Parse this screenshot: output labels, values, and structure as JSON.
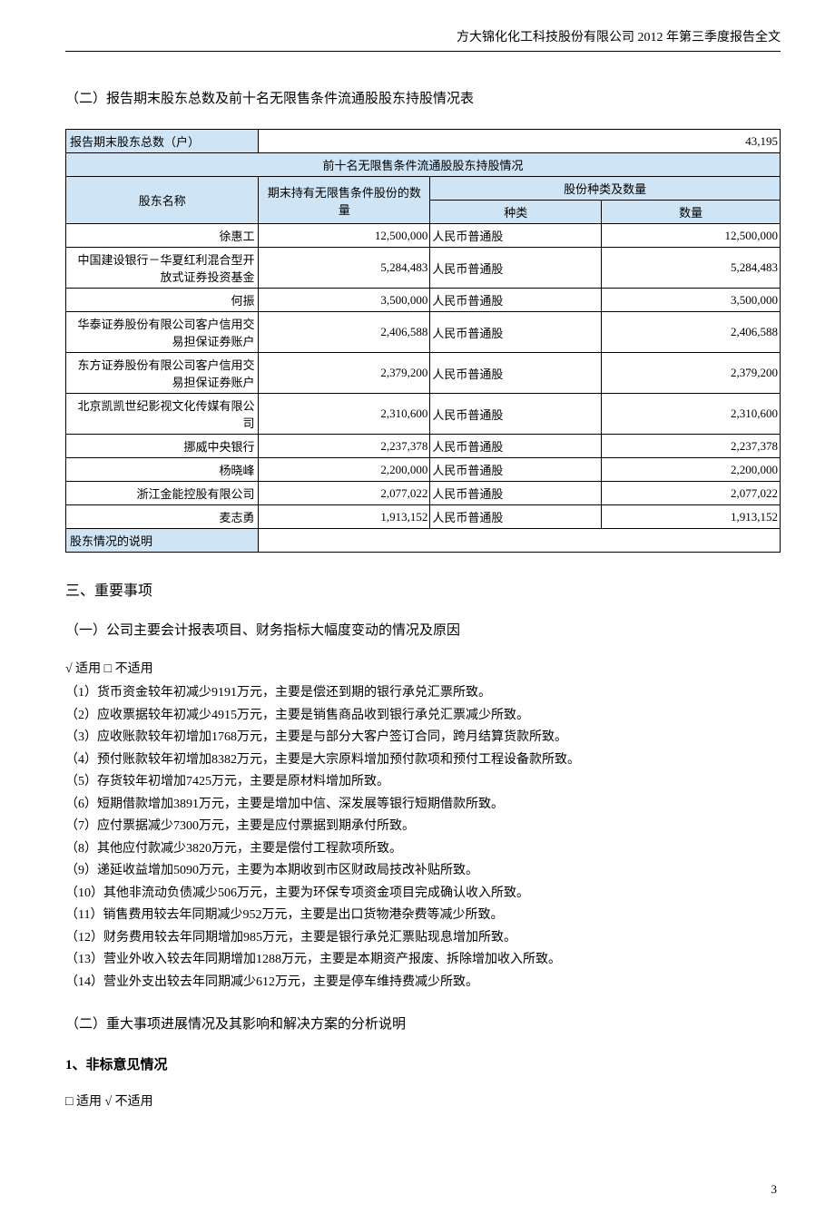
{
  "header": "方大锦化化工科技股份有限公司 2012 年第三季度报告全文",
  "section2_title": "（二）报告期末股东总数及前十名无限售条件流通股股东持股情况表",
  "table": {
    "total_label": "报告期末股东总数（户）",
    "total_value": "43,195",
    "top10_header": "前十名无限售条件流通股股东持股情况",
    "col_name": "股东名称",
    "col_qty": "期末持有无限售条件股份的数量",
    "col_typeqty": "股份种类及数量",
    "col_type": "种类",
    "col_amount": "数量",
    "rows": [
      {
        "name": "徐惠工",
        "qty": "12,500,000",
        "type": "人民币普通股",
        "amount": "12,500,000"
      },
      {
        "name": "中国建设银行－华夏红利混合型开放式证券投资基金",
        "qty": "5,284,483",
        "type": "人民币普通股",
        "amount": "5,284,483"
      },
      {
        "name": "何振",
        "qty": "3,500,000",
        "type": "人民币普通股",
        "amount": "3,500,000"
      },
      {
        "name": "华泰证券股份有限公司客户信用交易担保证券账户",
        "qty": "2,406,588",
        "type": "人民币普通股",
        "amount": "2,406,588"
      },
      {
        "name": "东方证券股份有限公司客户信用交易担保证券账户",
        "qty": "2,379,200",
        "type": "人民币普通股",
        "amount": "2,379,200"
      },
      {
        "name": "北京凯凯世纪影视文化传媒有限公司",
        "qty": "2,310,600",
        "type": "人民币普通股",
        "amount": "2,310,600"
      },
      {
        "name": "挪威中央银行",
        "qty": "2,237,378",
        "type": "人民币普通股",
        "amount": "2,237,378"
      },
      {
        "name": "杨晓峰",
        "qty": "2,200,000",
        "type": "人民币普通股",
        "amount": "2,200,000"
      },
      {
        "name": "浙江金能控股有限公司",
        "qty": "2,077,022",
        "type": "人民币普通股",
        "amount": "2,077,022"
      },
      {
        "name": "麦志勇",
        "qty": "1,913,152",
        "type": "人民币普通股",
        "amount": "1,913,152"
      }
    ],
    "note_label": "股东情况的说明",
    "note_value": ""
  },
  "section3": {
    "title": "三、重要事项",
    "sub1_title": "（一）公司主要会计报表项目、财务指标大幅度变动的情况及原因",
    "applicable1": "√ 适用 □ 不适用",
    "lines": [
      "（1）货币资金较年初减少9191万元，主要是偿还到期的银行承兑汇票所致。",
      "（2）应收票据较年初减少4915万元，主要是销售商品收到银行承兑汇票减少所致。",
      "（3）应收账款较年初增加1768万元，主要是与部分大客户签订合同，跨月结算货款所致。",
      "（4）预付账款较年初增加8382万元，主要是大宗原料增加预付款项和预付工程设备款所致。",
      "（5）存货较年初增加7425万元，主要是原材料增加所致。",
      "（6）短期借款增加3891万元，主要是增加中信、深发展等银行短期借款所致。",
      "（7）应付票据减少7300万元，主要是应付票据到期承付所致。",
      "（8）其他应付款减少3820万元，主要是偿付工程款项所致。",
      "（9）递延收益增加5090万元，主要为本期收到市区财政局技改补贴所致。",
      "（10）其他非流动负债减少506万元，主要为环保专项资金项目完成确认收入所致。",
      "（11）销售费用较去年同期减少952万元，主要是出口货物港杂费等减少所致。",
      "（12）财务费用较去年同期增加985万元，主要是银行承兑汇票贴现息增加所致。",
      "（13）营业外收入较去年同期增加1288万元，主要是本期资产报废、拆除增加收入所致。",
      "（14）营业外支出较去年同期减少612万元，主要是停车维持费减少所致。"
    ],
    "sub2_title": "（二）重大事项进展情况及其影响和解决方案的分析说明",
    "item1_title": "1、非标意见情况",
    "applicable2": "□ 适用 √ 不适用"
  },
  "page_number": "3"
}
